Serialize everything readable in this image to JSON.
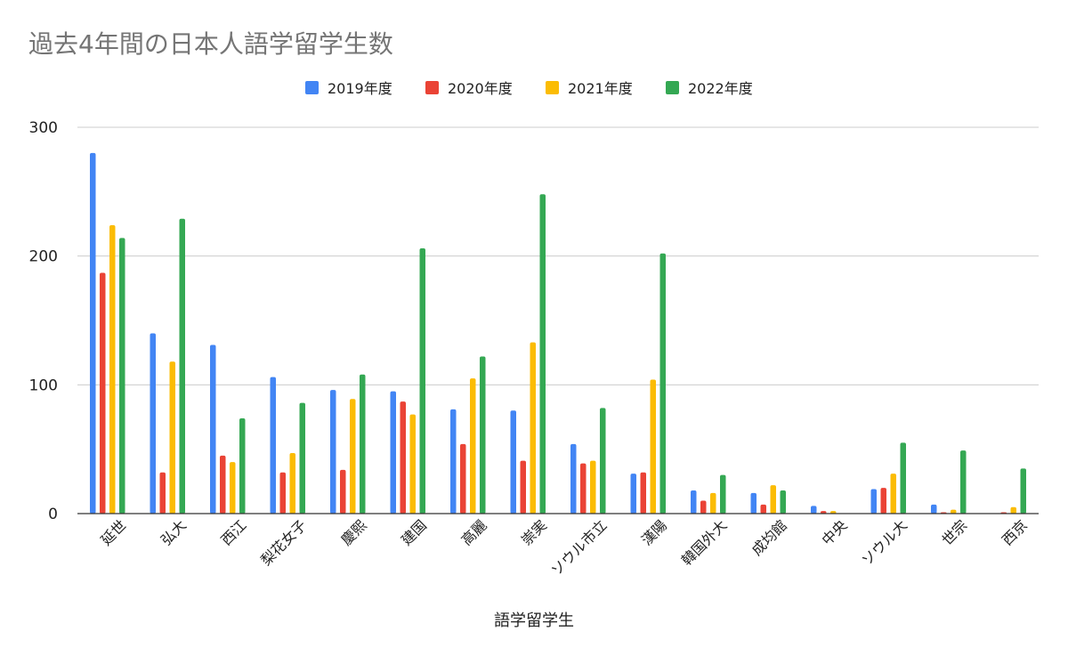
{
  "chart_data": {
    "type": "bar",
    "title": "過去4年間の日本人語学留学生数",
    "xlabel": "語学留学生",
    "ylabel": "",
    "ylim": [
      0,
      300
    ],
    "yticks": [
      0,
      100,
      200,
      300
    ],
    "grid": true,
    "legend_position": "top",
    "categories": [
      "延世",
      "弘大",
      "西江",
      "梨花女子",
      "慶熙",
      "建国",
      "高麗",
      "崇実",
      "ソウル市立",
      "漢陽",
      "韓国外大",
      "成均館",
      "中央",
      "ソウル大",
      "世宗",
      "西京"
    ],
    "series": [
      {
        "name": "2019年度",
        "color": "#4285f4",
        "values": [
          280,
          140,
          131,
          106,
          96,
          95,
          81,
          80,
          54,
          31,
          18,
          16,
          6,
          19,
          7,
          0
        ]
      },
      {
        "name": "2020年度",
        "color": "#ea4335",
        "values": [
          187,
          32,
          45,
          32,
          34,
          87,
          54,
          41,
          39,
          32,
          10,
          7,
          2,
          20,
          1,
          1
        ]
      },
      {
        "name": "2021年度",
        "color": "#fbbc04",
        "values": [
          224,
          118,
          40,
          47,
          89,
          77,
          105,
          133,
          41,
          104,
          16,
          22,
          2,
          31,
          3,
          5
        ]
      },
      {
        "name": "2022年度",
        "color": "#34a853",
        "values": [
          214,
          229,
          74,
          86,
          108,
          206,
          122,
          248,
          82,
          202,
          30,
          18,
          0,
          55,
          49,
          35
        ]
      }
    ]
  }
}
